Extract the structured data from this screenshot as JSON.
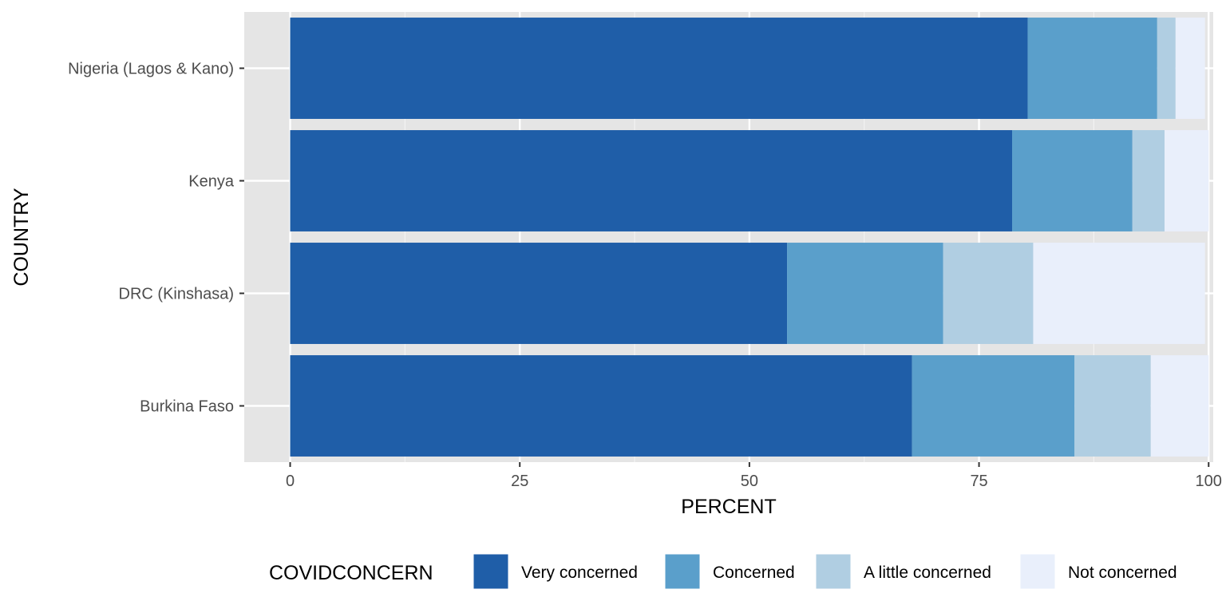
{
  "chart_data": {
    "type": "bar",
    "orientation": "horizontal",
    "stacked": true,
    "categories": [
      "Nigeria (Lagos & Kano)",
      "Kenya",
      "DRC (Kinshasa)",
      "Burkina Faso"
    ],
    "series": [
      {
        "name": "Very concerned",
        "color": "#1f5ea8",
        "values": [
          80.3,
          78.6,
          54.1,
          67.7
        ]
      },
      {
        "name": "Concerned",
        "color": "#5a9fcb",
        "values": [
          14.1,
          13.1,
          17.0,
          17.7
        ]
      },
      {
        "name": "A little concerned",
        "color": "#b0cee2",
        "values": [
          2.0,
          3.5,
          9.8,
          8.3
        ]
      },
      {
        "name": "Not concerned",
        "color": "#e9effb",
        "values": [
          3.2,
          4.8,
          18.7,
          6.3
        ]
      }
    ],
    "xlabel": "PERCENT",
    "ylabel": "COUNTRY",
    "xlim": [
      -5,
      100.5
    ],
    "xticks": [
      0,
      25,
      50,
      75,
      100
    ],
    "xtick_labels": [
      "0",
      "25",
      "50",
      "75",
      "100"
    ],
    "legend": {
      "title": "COVIDCONCERN",
      "position": "bottom"
    },
    "grid": true,
    "panel_background": "#e5e5e5"
  }
}
